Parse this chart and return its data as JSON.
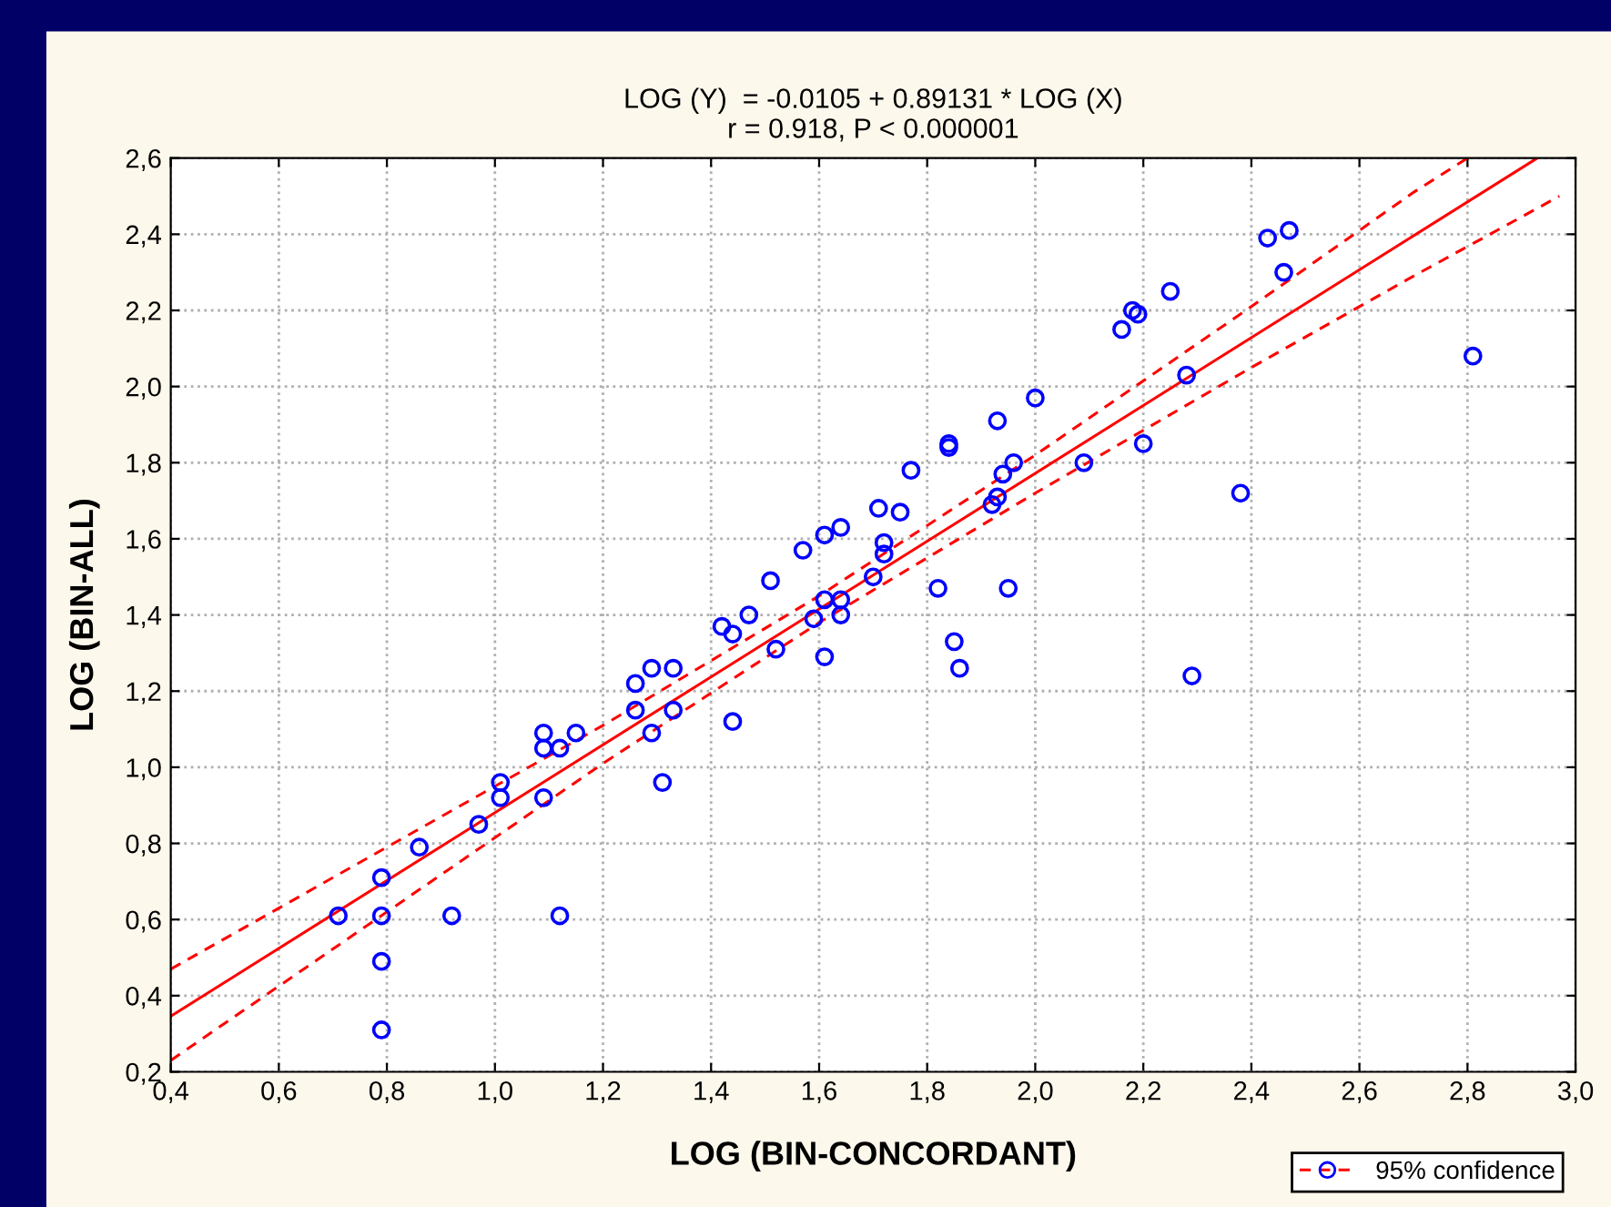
{
  "chart_data": {
    "type": "scatter",
    "title": "LOG (Y)  = -0.0105 + 0.89131 * LOG (X)",
    "subtitle": "r = 0.918, P < 0.000001",
    "xlabel": "LOG (BIN-CONCORDANT)",
    "ylabel": "LOG (BIN-ALL)",
    "xlim": [
      0.4,
      3.0
    ],
    "ylim": [
      0.2,
      2.6
    ],
    "xticks": [
      {
        "value": 0.4,
        "label": "0,4"
      },
      {
        "value": 0.6,
        "label": "0,6"
      },
      {
        "value": 0.8,
        "label": "0,8"
      },
      {
        "value": 1.0,
        "label": "1,0"
      },
      {
        "value": 1.2,
        "label": "1,2"
      },
      {
        "value": 1.4,
        "label": "1,4"
      },
      {
        "value": 1.6,
        "label": "1,6"
      },
      {
        "value": 1.8,
        "label": "1,8"
      },
      {
        "value": 2.0,
        "label": "2,0"
      },
      {
        "value": 2.2,
        "label": "2,2"
      },
      {
        "value": 2.4,
        "label": "2,4"
      },
      {
        "value": 2.6,
        "label": "2,6"
      },
      {
        "value": 2.8,
        "label": "2,8"
      },
      {
        "value": 3.0,
        "label": "3,0"
      }
    ],
    "yticks": [
      {
        "value": 0.2,
        "label": "0,2"
      },
      {
        "value": 0.4,
        "label": "0,4"
      },
      {
        "value": 0.6,
        "label": "0,6"
      },
      {
        "value": 0.8,
        "label": "0,8"
      },
      {
        "value": 1.0,
        "label": "1,0"
      },
      {
        "value": 1.2,
        "label": "1,2"
      },
      {
        "value": 1.4,
        "label": "1,4"
      },
      {
        "value": 1.6,
        "label": "1,6"
      },
      {
        "value": 1.8,
        "label": "1,8"
      },
      {
        "value": 2.0,
        "label": "2,0"
      },
      {
        "value": 2.2,
        "label": "2,2"
      },
      {
        "value": 2.4,
        "label": "2,4"
      },
      {
        "value": 2.6,
        "label": "2,6"
      }
    ],
    "grid": true,
    "legend": "bottom right",
    "series": [
      {
        "color": "#0000ff",
        "marker": "circle",
        "x": [
          0.71,
          0.79,
          0.79,
          0.79,
          0.79,
          0.86,
          0.92,
          0.97,
          1.01,
          1.01,
          1.09,
          1.09,
          1.09,
          1.12,
          1.12,
          1.15,
          1.26,
          1.26,
          1.29,
          1.29,
          1.33,
          1.33,
          1.31,
          1.42,
          1.44,
          1.47,
          1.44,
          1.52,
          1.59,
          1.61,
          1.64,
          1.57,
          1.61,
          1.64,
          1.51,
          1.61,
          1.64,
          1.71,
          1.75,
          1.72,
          1.72,
          1.7,
          1.82,
          1.95,
          1.77,
          1.84,
          1.84,
          1.93,
          1.96,
          1.94,
          1.93,
          1.92,
          2.0,
          2.09,
          2.2,
          2.18,
          2.19,
          2.16,
          2.25,
          2.43,
          2.47,
          2.46,
          2.28,
          2.38,
          2.81,
          1.85,
          1.86,
          2.29
        ],
        "values": [
          0.61,
          0.71,
          0.61,
          0.49,
          0.31,
          0.79,
          0.61,
          0.85,
          0.96,
          0.92,
          1.09,
          1.05,
          0.92,
          1.05,
          0.61,
          1.09,
          1.22,
          1.15,
          1.26,
          1.09,
          1.26,
          1.15,
          0.96,
          1.37,
          1.35,
          1.4,
          1.12,
          1.31,
          1.39,
          1.29,
          1.4,
          1.57,
          1.61,
          1.63,
          1.49,
          1.44,
          1.44,
          1.68,
          1.67,
          1.59,
          1.56,
          1.5,
          1.47,
          1.47,
          1.78,
          1.85,
          1.84,
          1.91,
          1.8,
          1.77,
          1.71,
          1.69,
          1.97,
          1.8,
          1.85,
          2.2,
          2.19,
          2.15,
          2.25,
          2.39,
          2.41,
          2.3,
          2.03,
          1.72,
          2.08,
          1.33,
          1.26,
          1.24
        ]
      },
      {
        "type": "line",
        "color": "#ff0000",
        "line_style": "solid",
        "x": [
          0.4,
          2.929
        ],
        "values": [
          0.346,
          2.6
        ]
      },
      {
        "type": "line",
        "color": "#ff0000",
        "line_style": "dashed",
        "name": "95% confidence",
        "x": [
          0.4,
          0.8,
          1.2,
          1.6,
          2.0,
          2.4,
          2.7,
          2.8
        ],
        "values": [
          0.47,
          0.79,
          1.11,
          1.45,
          1.82,
          2.21,
          2.51,
          2.6
        ]
      },
      {
        "type": "line",
        "color": "#ff0000",
        "line_style": "dashed",
        "x": [
          0.4,
          0.8,
          1.2,
          1.6,
          2.0,
          2.4,
          2.7,
          2.97
        ],
        "values": [
          0.23,
          0.62,
          1.01,
          1.38,
          1.72,
          2.05,
          2.29,
          2.5
        ]
      }
    ]
  }
}
